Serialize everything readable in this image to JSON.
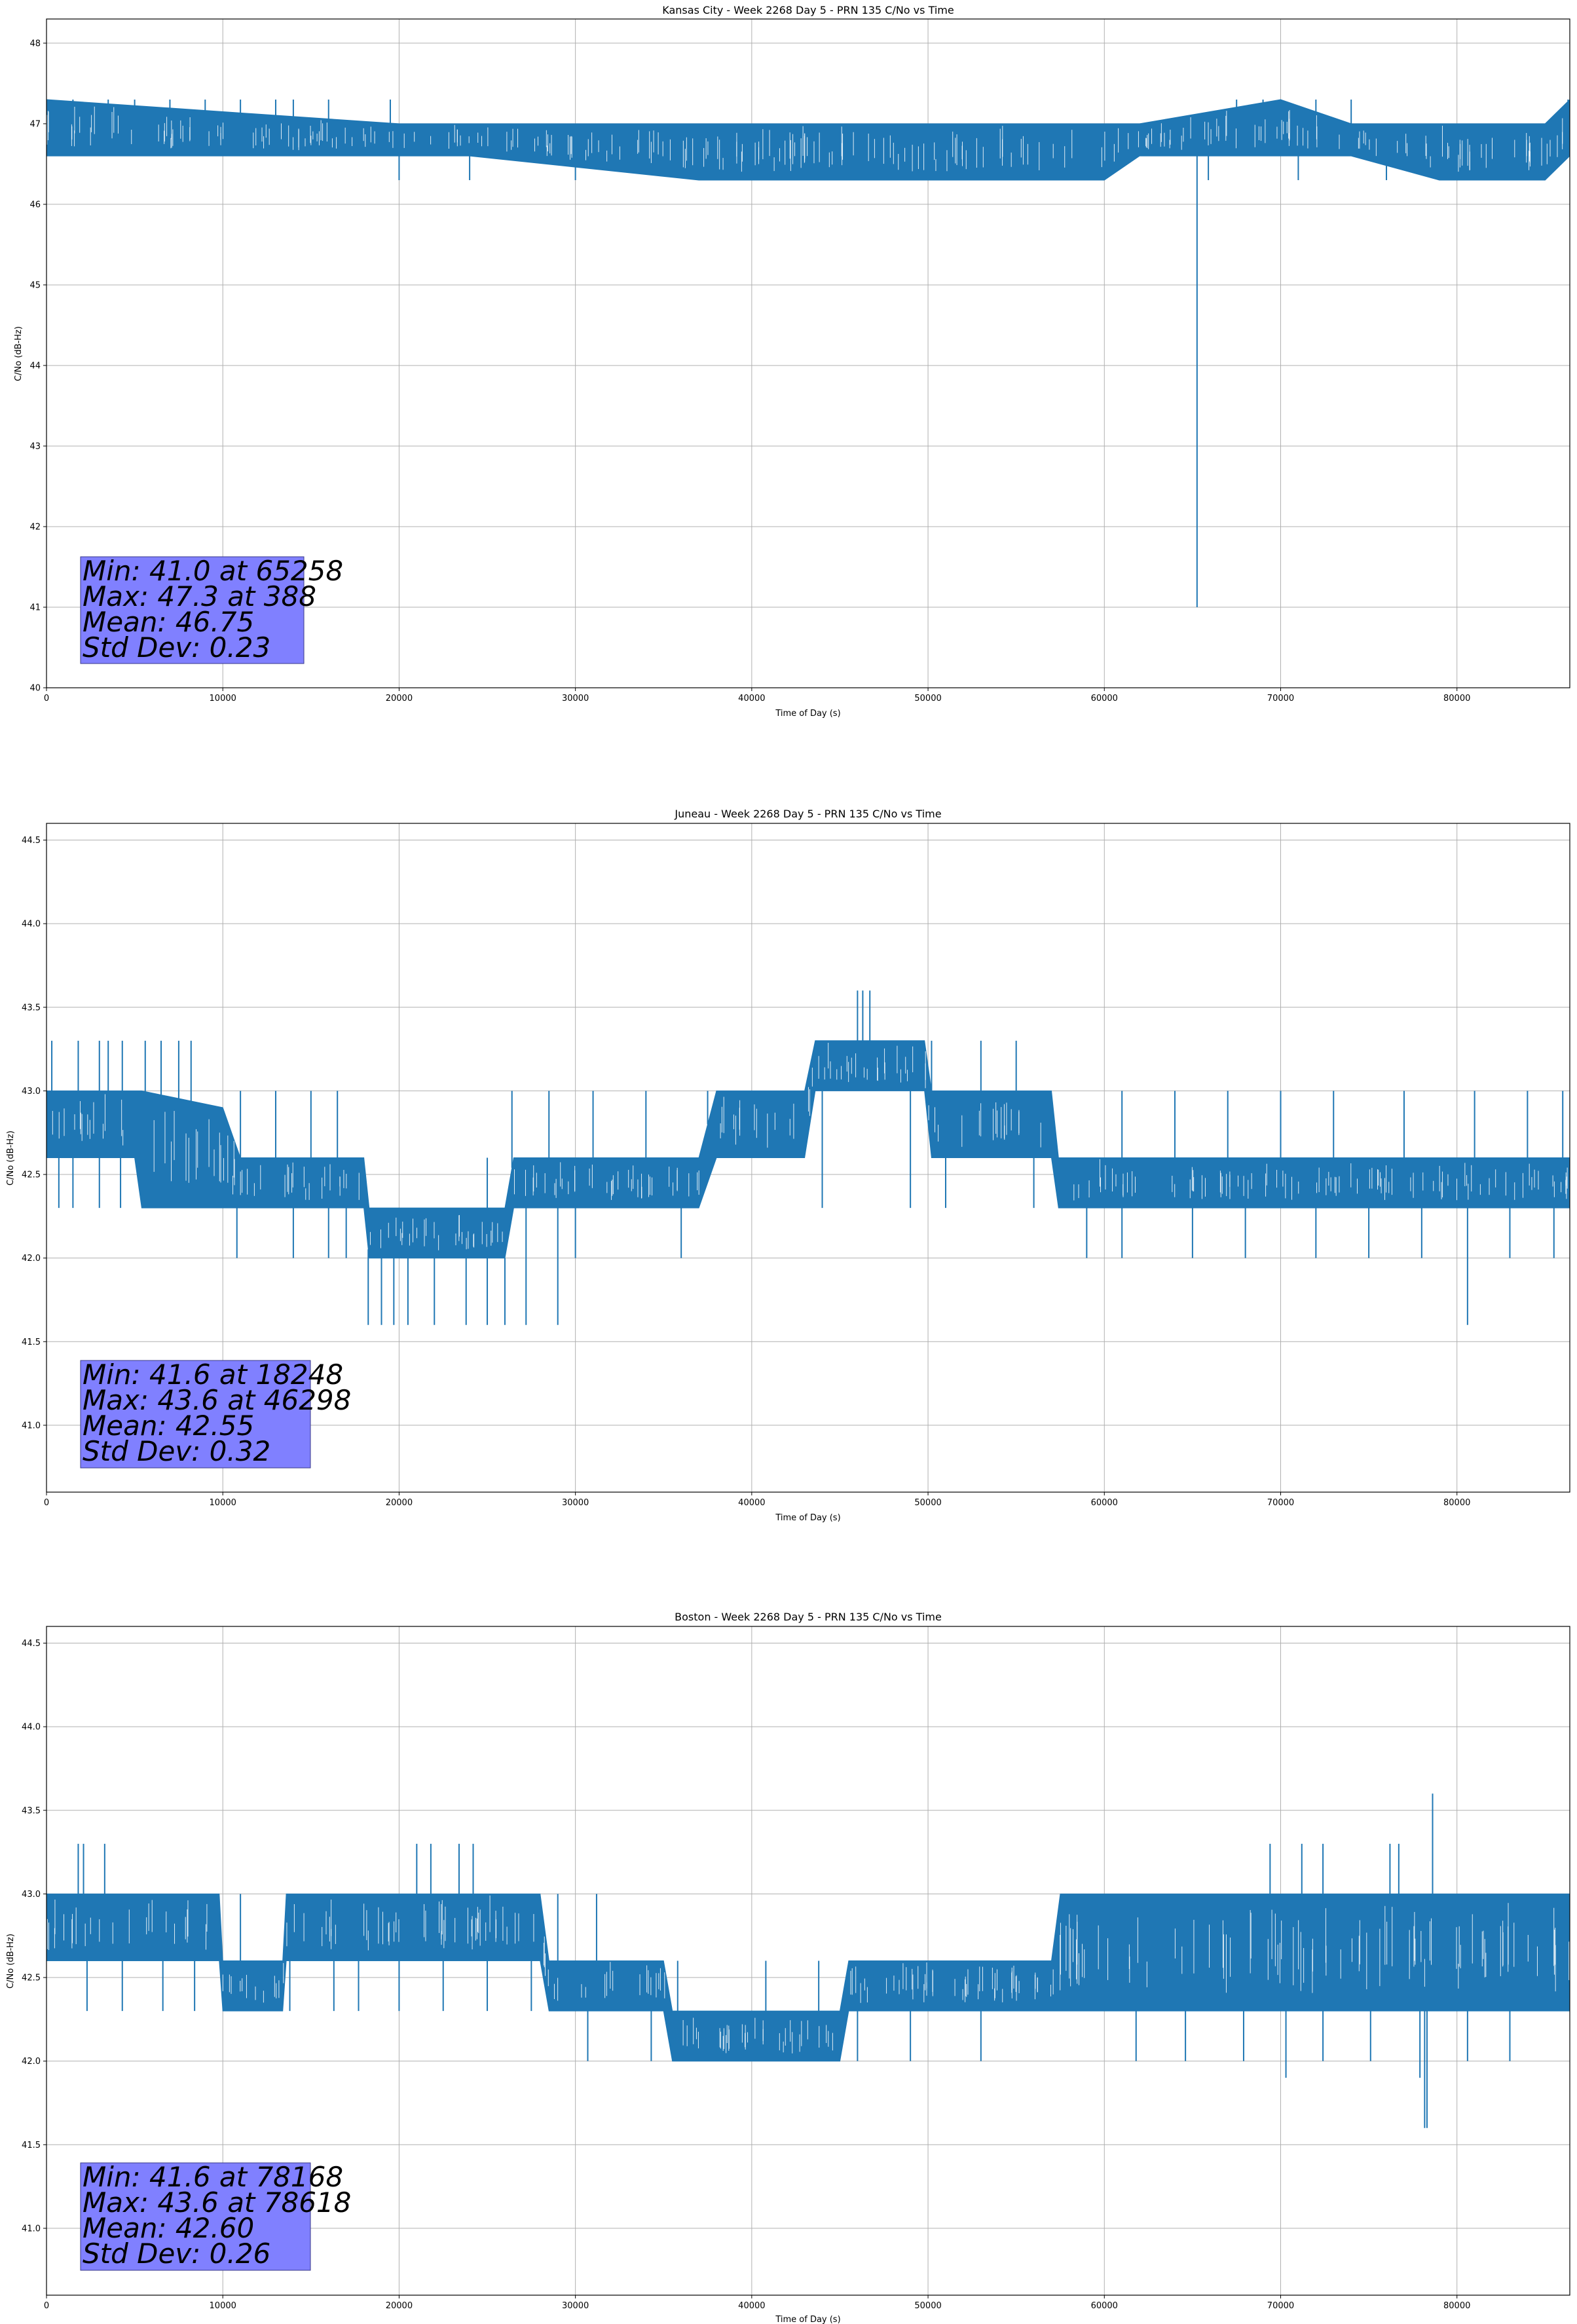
{
  "chart_data": [
    {
      "type": "line",
      "title": "Kansas City - Week 2268 Day 5 - PRN 135 C/No vs Time",
      "xlabel": "Time of Day (s)",
      "ylabel": "C/No (dB-Hz)",
      "xlim": [
        0,
        86400
      ],
      "ylim": [
        40,
        48.3
      ],
      "xticks": [
        0,
        10000,
        20000,
        30000,
        40000,
        50000,
        60000,
        70000,
        80000
      ],
      "xtick_labels": [
        "0",
        "10000",
        "20000",
        "30000",
        "40000",
        "50000",
        "60000",
        "70000",
        "80000"
      ],
      "yticks": [
        40,
        41,
        42,
        43,
        44,
        45,
        46,
        47,
        48
      ],
      "ytick_labels": [
        "40",
        "41",
        "42",
        "43",
        "44",
        "45",
        "46",
        "47",
        "48"
      ],
      "grid": true,
      "color": "#1f77b4",
      "stats_box_color": "#8080ff",
      "band": {
        "x": [
          0,
          20000,
          24000,
          37000,
          47000,
          60000,
          62000,
          70000,
          74000,
          79000,
          85000,
          86400
        ],
        "low": [
          46.6,
          46.6,
          46.6,
          46.3,
          46.3,
          46.3,
          46.6,
          46.6,
          46.6,
          46.3,
          46.3,
          46.6
        ],
        "high": [
          47.3,
          47.0,
          47.0,
          47.0,
          47.0,
          47.0,
          47.0,
          47.3,
          47.0,
          47.0,
          47.0,
          47.3
        ]
      },
      "spikes_down": [
        [
          20000,
          46.3
        ],
        [
          24000,
          46.3
        ],
        [
          30000,
          46.3
        ],
        [
          38000,
          46.3
        ],
        [
          45000,
          46.3
        ],
        [
          53000,
          46.3
        ],
        [
          65258,
          41.0
        ],
        [
          65900,
          46.3
        ],
        [
          71000,
          46.3
        ],
        [
          76000,
          46.3
        ],
        [
          80000,
          46.3
        ],
        [
          84000,
          46.3
        ]
      ],
      "spikes_up": [
        [
          1500,
          47.3
        ],
        [
          3500,
          47.3
        ],
        [
          5000,
          47.3
        ],
        [
          7000,
          47.3
        ],
        [
          9000,
          47.3
        ],
        [
          11000,
          47.3
        ],
        [
          13000,
          47.3
        ],
        [
          14000,
          47.3
        ],
        [
          16000,
          47.3
        ],
        [
          19500,
          47.3
        ],
        [
          67500,
          47.3
        ],
        [
          69000,
          47.3
        ],
        [
          72000,
          47.3
        ],
        [
          74000,
          47.3
        ],
        [
          86300,
          47.3
        ]
      ],
      "stats": [
        "Min: 41.0 at 65258",
        "Max: 47.3 at 388",
        "Mean: 46.75",
        "Std Dev: 0.23"
      ]
    },
    {
      "type": "line",
      "title": "Juneau - Week 2268 Day 5 - PRN 135 C/No vs Time",
      "xlabel": "Time of Day (s)",
      "ylabel": "C/No (dB-Hz)",
      "xlim": [
        0,
        86400
      ],
      "ylim": [
        40.6,
        44.6
      ],
      "xticks": [
        0,
        10000,
        20000,
        30000,
        40000,
        50000,
        60000,
        70000,
        80000
      ],
      "xtick_labels": [
        "0",
        "10000",
        "20000",
        "30000",
        "40000",
        "50000",
        "60000",
        "70000",
        "80000"
      ],
      "yticks": [
        41.0,
        41.5,
        42.0,
        42.5,
        43.0,
        43.5,
        44.0,
        44.5
      ],
      "ytick_labels": [
        "41.0",
        "41.5",
        "42.0",
        "42.5",
        "43.0",
        "43.5",
        "44.0",
        "44.5"
      ],
      "grid": true,
      "color": "#1f77b4",
      "stats_box_color": "#8080ff",
      "band": {
        "x": [
          0,
          5000,
          5400,
          10000,
          11000,
          18000,
          18300,
          26000,
          26500,
          37000,
          38000,
          43000,
          43600,
          49800,
          50200,
          57000,
          57400,
          86400
        ],
        "low": [
          42.6,
          42.6,
          42.3,
          42.3,
          42.3,
          42.3,
          42.0,
          42.0,
          42.3,
          42.3,
          42.6,
          42.6,
          43.0,
          43.0,
          42.6,
          42.6,
          42.3,
          42.3
        ],
        "high": [
          43.0,
          43.0,
          43.0,
          42.9,
          42.6,
          42.6,
          42.3,
          42.3,
          42.6,
          42.6,
          43.0,
          43.0,
          43.3,
          43.3,
          43.0,
          43.0,
          42.6,
          42.6
        ]
      },
      "spikes_down": [
        [
          700,
          42.3
        ],
        [
          1500,
          42.3
        ],
        [
          3000,
          42.3
        ],
        [
          4200,
          42.3
        ],
        [
          6500,
          42.3
        ],
        [
          8000,
          42.3
        ],
        [
          9000,
          42.3
        ],
        [
          10800,
          42.0
        ],
        [
          14000,
          42.0
        ],
        [
          16000,
          42.0
        ],
        [
          17000,
          42.0
        ],
        [
          18248,
          41.6
        ],
        [
          19000,
          41.6
        ],
        [
          19700,
          41.6
        ],
        [
          20500,
          41.6
        ],
        [
          22000,
          41.6
        ],
        [
          23800,
          41.6
        ],
        [
          25000,
          41.6
        ],
        [
          26000,
          41.6
        ],
        [
          27200,
          41.6
        ],
        [
          29000,
          41.6
        ],
        [
          30000,
          42.0
        ],
        [
          36000,
          42.0
        ],
        [
          44000,
          42.3
        ],
        [
          49000,
          42.3
        ],
        [
          51000,
          42.3
        ],
        [
          56000,
          42.3
        ],
        [
          59000,
          42.0
        ],
        [
          61000,
          42.0
        ],
        [
          65000,
          42.0
        ],
        [
          68000,
          42.0
        ],
        [
          72000,
          42.0
        ],
        [
          75000,
          42.0
        ],
        [
          78000,
          42.0
        ],
        [
          80600,
          41.6
        ],
        [
          83000,
          42.0
        ],
        [
          85500,
          42.0
        ]
      ],
      "spikes_up": [
        [
          300,
          43.3
        ],
        [
          1800,
          43.3
        ],
        [
          3000,
          43.3
        ],
        [
          3500,
          43.3
        ],
        [
          4300,
          43.3
        ],
        [
          5600,
          43.3
        ],
        [
          6500,
          43.3
        ],
        [
          7500,
          43.3
        ],
        [
          8200,
          43.3
        ],
        [
          11000,
          43.0
        ],
        [
          13000,
          43.0
        ],
        [
          15000,
          43.0
        ],
        [
          16500,
          43.0
        ],
        [
          25000,
          42.6
        ],
        [
          26400,
          43.0
        ],
        [
          28500,
          43.0
        ],
        [
          31000,
          43.0
        ],
        [
          34000,
          43.0
        ],
        [
          37500,
          43.0
        ],
        [
          39000,
          43.0
        ],
        [
          42000,
          43.0
        ],
        [
          44600,
          43.3
        ],
        [
          45500,
          43.3
        ],
        [
          46000,
          43.6
        ],
        [
          46298,
          43.6
        ],
        [
          46700,
          43.6
        ],
        [
          48200,
          43.3
        ],
        [
          50200,
          43.3
        ],
        [
          53000,
          43.3
        ],
        [
          55000,
          43.3
        ],
        [
          57000,
          43.0
        ],
        [
          61000,
          43.0
        ],
        [
          64000,
          43.0
        ],
        [
          67000,
          43.0
        ],
        [
          70000,
          43.0
        ],
        [
          73000,
          43.0
        ],
        [
          77000,
          43.0
        ],
        [
          81000,
          43.0
        ],
        [
          84000,
          43.0
        ],
        [
          86000,
          43.0
        ]
      ],
      "stats": [
        "Min: 41.6 at 18248",
        "Max: 43.6 at 46298",
        "Mean: 42.55",
        "Std Dev: 0.32"
      ]
    },
    {
      "type": "line",
      "title": "Boston - Week 2268 Day 5 - PRN 135 C/No vs Time",
      "xlabel": "Time of Day (s)",
      "ylabel": "C/No (dB-Hz)",
      "xlim": [
        0,
        86400
      ],
      "ylim": [
        40.6,
        44.6
      ],
      "xticks": [
        0,
        10000,
        20000,
        30000,
        40000,
        50000,
        60000,
        70000,
        80000
      ],
      "xtick_labels": [
        "0",
        "10000",
        "20000",
        "30000",
        "40000",
        "50000",
        "60000",
        "70000",
        "80000"
      ],
      "yticks": [
        41.0,
        41.5,
        42.0,
        42.5,
        43.0,
        43.5,
        44.0,
        44.5
      ],
      "ytick_labels": [
        "41.0",
        "41.5",
        "42.0",
        "42.5",
        "43.0",
        "43.5",
        "44.0",
        "44.5"
      ],
      "grid": true,
      "color": "#1f77b4",
      "stats_box_color": "#8080ff",
      "band": {
        "x": [
          0,
          9800,
          10000,
          13400,
          13600,
          28000,
          28500,
          35000,
          35500,
          45000,
          45500,
          48000,
          48500,
          57000,
          57500,
          67000,
          67500,
          86400
        ],
        "low": [
          42.6,
          42.6,
          42.3,
          42.3,
          42.6,
          42.6,
          42.3,
          42.3,
          42.0,
          42.0,
          42.3,
          42.3,
          42.3,
          42.3,
          42.3,
          42.3,
          42.3,
          42.3
        ],
        "high": [
          43.0,
          43.0,
          42.6,
          42.6,
          43.0,
          43.0,
          42.6,
          42.6,
          42.3,
          42.3,
          42.6,
          42.6,
          42.6,
          42.6,
          43.0,
          43.0,
          43.0,
          43.0
        ]
      },
      "spikes_down": [
        [
          2300,
          42.3
        ],
        [
          4300,
          42.3
        ],
        [
          6600,
          42.3
        ],
        [
          8400,
          42.3
        ],
        [
          13800,
          42.3
        ],
        [
          16300,
          42.3
        ],
        [
          17700,
          42.3
        ],
        [
          20000,
          42.3
        ],
        [
          22500,
          42.3
        ],
        [
          25000,
          42.3
        ],
        [
          27500,
          42.3
        ],
        [
          30700,
          42.0
        ],
        [
          34300,
          42.0
        ],
        [
          38000,
          42.0
        ],
        [
          42000,
          42.0
        ],
        [
          46000,
          42.0
        ],
        [
          49000,
          42.0
        ],
        [
          53000,
          42.0
        ],
        [
          61800,
          42.0
        ],
        [
          64600,
          42.0
        ],
        [
          67900,
          42.0
        ],
        [
          70300,
          41.9
        ],
        [
          72400,
          42.0
        ],
        [
          75100,
          42.0
        ],
        [
          77900,
          41.9
        ],
        [
          78168,
          41.6
        ],
        [
          78300,
          41.6
        ],
        [
          80600,
          42.0
        ],
        [
          83000,
          42.0
        ],
        [
          86000,
          42.3
        ]
      ],
      "spikes_up": [
        [
          1800,
          43.3
        ],
        [
          2100,
          43.3
        ],
        [
          3300,
          43.3
        ],
        [
          6200,
          43.0
        ],
        [
          11000,
          43.0
        ],
        [
          14200,
          43.0
        ],
        [
          18000,
          43.0
        ],
        [
          21000,
          43.3
        ],
        [
          21800,
          43.3
        ],
        [
          23400,
          43.3
        ],
        [
          24200,
          43.3
        ],
        [
          26500,
          43.0
        ],
        [
          29000,
          43.0
        ],
        [
          31200,
          43.0
        ],
        [
          35800,
          42.6
        ],
        [
          40800,
          42.6
        ],
        [
          43800,
          42.6
        ],
        [
          48800,
          42.6
        ],
        [
          53600,
          42.6
        ],
        [
          57800,
          43.0
        ],
        [
          62000,
          43.0
        ],
        [
          66700,
          43.0
        ],
        [
          69400,
          43.3
        ],
        [
          71200,
          43.3
        ],
        [
          72400,
          43.3
        ],
        [
          74400,
          43.0
        ],
        [
          76200,
          43.3
        ],
        [
          76700,
          43.3
        ],
        [
          78618,
          43.6
        ],
        [
          79400,
          43.0
        ],
        [
          81400,
          43.0
        ],
        [
          83400,
          43.0
        ],
        [
          85200,
          43.0
        ]
      ],
      "stats": [
        "Min: 41.6 at 78168",
        "Max: 43.6 at 78618",
        "Mean: 42.60",
        "Std Dev: 0.26"
      ]
    }
  ]
}
